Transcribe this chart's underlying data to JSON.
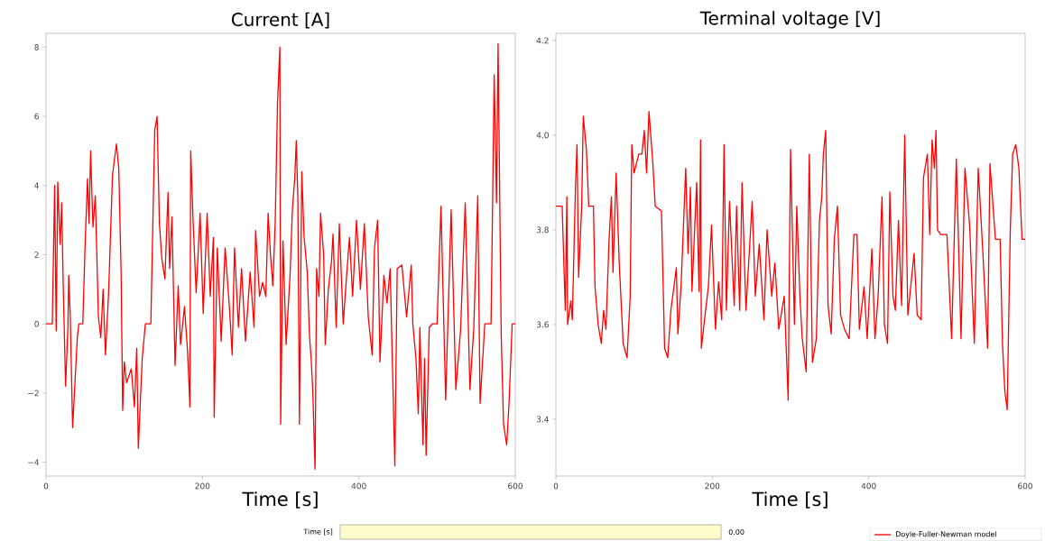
{
  "chart_data": [
    {
      "type": "line",
      "title": "Current [A]",
      "xlabel": "Time [s]",
      "x": [
        0,
        8,
        11,
        13,
        15,
        18,
        20,
        22,
        25,
        28,
        29,
        31,
        34,
        40,
        42,
        47,
        50,
        53,
        55,
        57,
        60,
        63,
        67,
        70,
        73,
        76,
        80,
        85,
        90,
        93,
        96,
        98,
        100,
        103,
        109,
        113,
        116,
        118,
        123,
        127,
        134,
        139,
        142,
        145,
        148,
        152,
        156,
        158,
        161,
        165,
        169,
        172,
        177,
        181,
        184,
        185,
        188,
        192,
        197,
        201,
        206,
        210,
        214,
        215,
        219,
        224,
        229,
        235,
        238,
        241,
        246,
        250,
        255,
        261,
        266,
        268,
        273,
        277,
        281,
        284,
        287,
        290,
        293,
        296,
        299,
        300,
        303,
        307,
        312,
        315,
        318,
        320,
        322,
        324,
        327,
        330,
        334,
        337,
        339,
        341,
        344,
        346,
        349,
        351,
        355,
        357,
        361,
        365,
        367,
        371,
        375,
        380,
        384,
        388,
        392,
        397,
        402,
        407,
        412,
        417,
        420,
        424,
        427,
        432,
        436,
        440,
        446,
        449,
        455,
        461,
        467,
        469,
        473,
        476,
        478,
        482,
        484,
        486,
        490,
        494,
        500,
        505,
        511,
        518,
        524,
        530,
        536,
        542,
        547,
        552,
        555,
        561,
        569,
        571,
        573,
        576,
        578,
        582,
        585,
        589,
        592,
        596,
        600
      ],
      "series": [
        {
          "color": "#ff0000",
          "values": [
            0,
            0,
            4.0,
            -0.2,
            4.1,
            2.3,
            3.5,
            1.1,
            -1.8,
            -0.1,
            1.4,
            0.2,
            -3.0,
            -0.4,
            0,
            0,
            2.3,
            4.2,
            2.9,
            5.0,
            2.8,
            3.7,
            0.2,
            -0.4,
            1.0,
            -0.9,
            0.9,
            4.3,
            5.2,
            4.5,
            1.5,
            -2.5,
            -1.1,
            -1.7,
            -1.3,
            -2.4,
            -0.7,
            -3.6,
            -1.0,
            0,
            0,
            5.6,
            6.0,
            2.9,
            1.9,
            1.3,
            3.8,
            1.6,
            3.1,
            -1.2,
            1.1,
            -0.6,
            0.5,
            -0.8,
            -2.4,
            5.0,
            3.0,
            0.9,
            3.2,
            0.3,
            3.2,
            0.8,
            2.5,
            -2.7,
            2.2,
            -0.5,
            2.2,
            0.3,
            -0.9,
            2.2,
            -0.1,
            1.6,
            -0.5,
            1.5,
            -0.1,
            2.7,
            0.8,
            1.2,
            0.8,
            3.2,
            2.0,
            1.1,
            2.9,
            6.4,
            8.0,
            -2.9,
            2.4,
            -0.6,
            1.4,
            3.3,
            4.2,
            5.3,
            3.6,
            -2.9,
            4.4,
            2.5,
            1.5,
            -0.4,
            -1.0,
            -1.9,
            -4.2,
            1.6,
            0.8,
            3.2,
            2.0,
            -0.6,
            1.0,
            1.8,
            2.6,
            -0.1,
            2.9,
            0.0,
            1.3,
            2.5,
            0.8,
            3.0,
            1.0,
            2.9,
            0.2,
            -0.9,
            2.2,
            3.0,
            -1.1,
            1.4,
            0.6,
            1.6,
            -4.1,
            1.6,
            1.7,
            0.2,
            1.7,
            0,
            -1.0,
            -2.6,
            -0.1,
            -3.5,
            -1.0,
            -3.8,
            -0.1,
            0,
            0,
            3.4,
            -2.2,
            3.3,
            -1.9,
            -0.2,
            3.5,
            -1.9,
            -0.1,
            3.7,
            -2.3,
            0,
            0,
            3.5,
            7.2,
            3.5,
            8.1,
            -0.3,
            -2.9,
            -3.5,
            -2.3,
            0,
            0
          ]
        }
      ],
      "xlim": [
        0,
        600
      ],
      "ylim": [
        -4.4,
        8.4
      ],
      "xticks": [
        0,
        200,
        400,
        600
      ],
      "yticks": [
        {
          "value": -4,
          "label": "−4"
        },
        {
          "value": -2,
          "label": "−2"
        },
        0,
        2,
        4,
        6,
        8
      ],
      "annotations": [
        "Time [s]",
        "0.00"
      ]
    },
    {
      "type": "line",
      "title": "Terminal voltage [V]",
      "xlabel": "Time [s]",
      "x": [
        0,
        8,
        12,
        14,
        15,
        19,
        21,
        25,
        27,
        29,
        33,
        35,
        39,
        42,
        48,
        50,
        54,
        58,
        61,
        64,
        68,
        71,
        73,
        77,
        81,
        86,
        91,
        95,
        97,
        100,
        106,
        110,
        113,
        116,
        119,
        124,
        127,
        135,
        139,
        143,
        147,
        151,
        154,
        156,
        160,
        166,
        169,
        172,
        174,
        180,
        183,
        185,
        186,
        190,
        195,
        199,
        204,
        208,
        212,
        215,
        218,
        222,
        228,
        231,
        235,
        238,
        243,
        251,
        255,
        260,
        266,
        270,
        276,
        280,
        285,
        292,
        297,
        300,
        305,
        308,
        312,
        315,
        320,
        324,
        328,
        333,
        337,
        340,
        342,
        345,
        348,
        352,
        356,
        360,
        364,
        369,
        375,
        381,
        385,
        388,
        394,
        398,
        404,
        408,
        412,
        417,
        420,
        424,
        427,
        431,
        434,
        438,
        442,
        446,
        450,
        458,
        462,
        467,
        470,
        475,
        478,
        481,
        484,
        486,
        488,
        492,
        500,
        506,
        512,
        518,
        523,
        529,
        535,
        540,
        546,
        552,
        555,
        562,
        568,
        571,
        574,
        577,
        581,
        584,
        588,
        592,
        596,
        600
      ],
      "series": [
        {
          "name": "Doyle-Fuller-Newman model",
          "color": "#ff0000",
          "values": [
            3.85,
            3.85,
            3.63,
            3.87,
            3.6,
            3.65,
            3.61,
            3.89,
            3.98,
            3.7,
            3.85,
            4.04,
            3.97,
            3.85,
            3.85,
            3.68,
            3.6,
            3.56,
            3.63,
            3.59,
            3.78,
            3.87,
            3.71,
            3.92,
            3.73,
            3.56,
            3.53,
            3.66,
            3.98,
            3.92,
            3.96,
            3.96,
            4.01,
            3.92,
            4.05,
            3.94,
            3.85,
            3.84,
            3.55,
            3.53,
            3.63,
            3.68,
            3.72,
            3.58,
            3.68,
            3.93,
            3.75,
            3.89,
            3.67,
            3.9,
            3.67,
            3.99,
            3.55,
            3.61,
            3.68,
            3.81,
            3.59,
            3.69,
            3.61,
            3.98,
            3.63,
            3.86,
            3.64,
            3.85,
            3.63,
            3.9,
            3.63,
            3.86,
            3.66,
            3.77,
            3.61,
            3.8,
            3.66,
            3.73,
            3.59,
            3.66,
            3.44,
            3.97,
            3.6,
            3.85,
            3.66,
            3.57,
            3.5,
            3.96,
            3.52,
            3.57,
            3.82,
            3.87,
            3.96,
            4.01,
            3.64,
            3.58,
            3.78,
            3.85,
            3.62,
            3.59,
            3.57,
            3.79,
            3.79,
            3.59,
            3.68,
            3.57,
            3.76,
            3.57,
            3.66,
            3.87,
            3.6,
            3.56,
            3.88,
            3.66,
            3.63,
            3.82,
            3.64,
            4.0,
            3.62,
            3.75,
            3.62,
            3.61,
            3.91,
            3.96,
            3.79,
            3.99,
            3.93,
            4.01,
            3.8,
            3.79,
            3.79,
            3.57,
            3.95,
            3.57,
            3.93,
            3.81,
            3.56,
            3.93,
            3.75,
            3.55,
            3.94,
            3.78,
            3.78,
            3.56,
            3.46,
            3.42,
            3.8,
            3.96,
            3.98,
            3.93,
            3.78,
            3.78
          ]
        }
      ],
      "xlim": [
        0,
        600
      ],
      "ylim": [
        3.28,
        4.215
      ],
      "xticks": [
        0,
        200,
        400,
        600
      ],
      "yticks": [
        3.4,
        3.6,
        3.8,
        {
          "value": 4.0,
          "label": "4.0"
        },
        4.2
      ],
      "legend": "bottom right"
    }
  ]
}
